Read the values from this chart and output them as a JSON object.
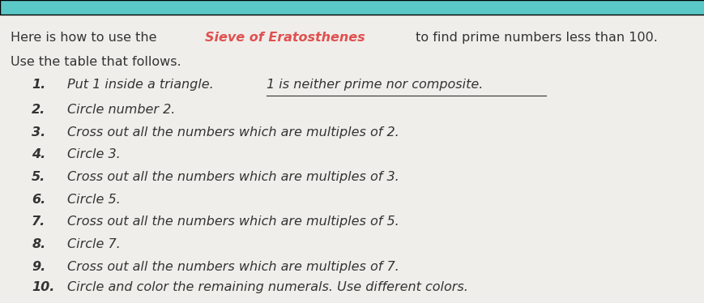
{
  "bg_color": "#f0eeea",
  "header_bar_color": "#5bc8c8",
  "title_line1_prefix": "Here is how to use the ",
  "title_highlight": "Sieve of Eratosthenes",
  "title_line1_suffix": " to find prime numbers less than 100.",
  "title_line2": "Use the table that follows.",
  "highlight_color": "#e05050",
  "text_color": "#333333",
  "items": [
    {
      "num": "1.",
      "text": "Put 1 inside a triangle.  ",
      "underline": "1 is neither prime nor composite."
    },
    {
      "num": "2.",
      "text": "Circle number 2.",
      "underline": ""
    },
    {
      "num": "3.",
      "text": "Cross out all the numbers which are multiples of 2.",
      "underline": ""
    },
    {
      "num": "4.",
      "text": "Circle 3.",
      "underline": ""
    },
    {
      "num": "5.",
      "text": "Cross out all the numbers which are multiples of 3.",
      "underline": ""
    },
    {
      "num": "6.",
      "text": "Circle 5.",
      "underline": ""
    },
    {
      "num": "7.",
      "text": "Cross out all the numbers which are multiples of 5.",
      "underline": ""
    },
    {
      "num": "8.",
      "text": "Circle 7.",
      "underline": ""
    },
    {
      "num": "9.",
      "text": "Cross out all the numbers which are multiples of 7.",
      "underline": ""
    },
    {
      "num": "10.",
      "text": "Circle and color the remaining numerals. Use different colors.",
      "underline": ""
    }
  ],
  "title_fontsize": 11.5,
  "item_fontsize": 11.5
}
